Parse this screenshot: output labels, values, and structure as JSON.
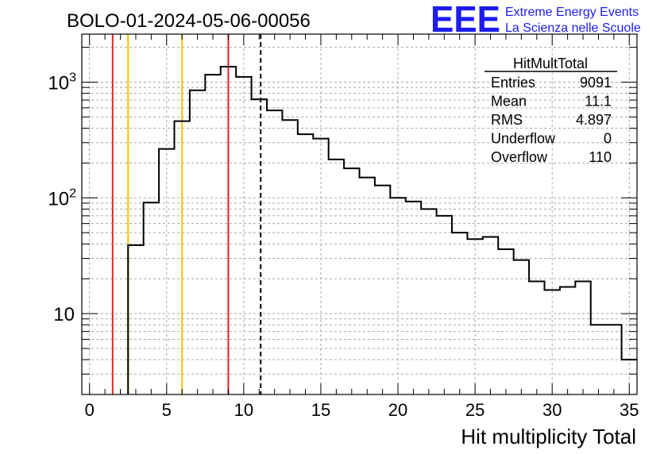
{
  "header": {
    "run_title": "BOLO-01-2024-05-06-00056",
    "logo_text": "EEE",
    "logo_line1": "Extreme Energy Events",
    "logo_line2": "La Scienza nelle Scuole"
  },
  "stats_box": {
    "title": "HitMultTotal",
    "rows": [
      {
        "label": "Entries",
        "value": "9091"
      },
      {
        "label": "Mean",
        "value": "11.1"
      },
      {
        "label": "RMS",
        "value": "4.897"
      },
      {
        "label": "Underflow",
        "value": "0"
      },
      {
        "label": "Overflow",
        "value": "110"
      }
    ]
  },
  "colors": {
    "histogram": "#000000",
    "red_lines": "#e8211e",
    "yellow_lines": "#f5c400",
    "logo": "#1c1cf0",
    "grid": "#a8a8a8"
  },
  "chart_data": {
    "type": "histogram",
    "title": "",
    "xlabel": "Hit multiplicity Total",
    "ylabel": "",
    "xlim": [
      -0.5,
      35.5
    ],
    "ylim": [
      2,
      2600
    ],
    "yscale": "log",
    "grid": true,
    "bin_width": 1,
    "bin_low_edges": [
      2.5,
      3.5,
      4.5,
      5.5,
      6.5,
      7.5,
      8.5,
      9.5,
      10.5,
      11.5,
      12.5,
      13.5,
      14.5,
      15.5,
      16.5,
      17.5,
      18.5,
      19.5,
      20.5,
      21.5,
      22.5,
      23.5,
      24.5,
      25.5,
      26.5,
      27.5,
      28.5,
      29.5,
      30.5,
      31.5,
      32.5,
      33.5,
      34.5
    ],
    "counts": [
      39,
      91,
      265,
      460,
      850,
      1160,
      1360,
      1110,
      710,
      570,
      470,
      355,
      325,
      215,
      180,
      150,
      128,
      100,
      93,
      80,
      70,
      50,
      44,
      46,
      36,
      29,
      19,
      16,
      17,
      19,
      8,
      8,
      4
    ],
    "x_ticks": [
      "0",
      "5",
      "10",
      "15",
      "20",
      "25",
      "30",
      "35"
    ],
    "y_ticks": [
      {
        "value": 10,
        "label": "10"
      },
      {
        "value": 100,
        "label": "10",
        "exp": "2"
      },
      {
        "value": 1000,
        "label": "10",
        "exp": "3"
      }
    ],
    "vertical_lines": [
      {
        "x": 1.5,
        "color": "red",
        "style": "solid"
      },
      {
        "x": 2.5,
        "color": "yellow",
        "style": "solid"
      },
      {
        "x": 6.0,
        "color": "yellow",
        "style": "solid"
      },
      {
        "x": 9.0,
        "color": "red",
        "style": "solid"
      },
      {
        "x": 11.1,
        "color": "black",
        "style": "dashed"
      }
    ]
  }
}
